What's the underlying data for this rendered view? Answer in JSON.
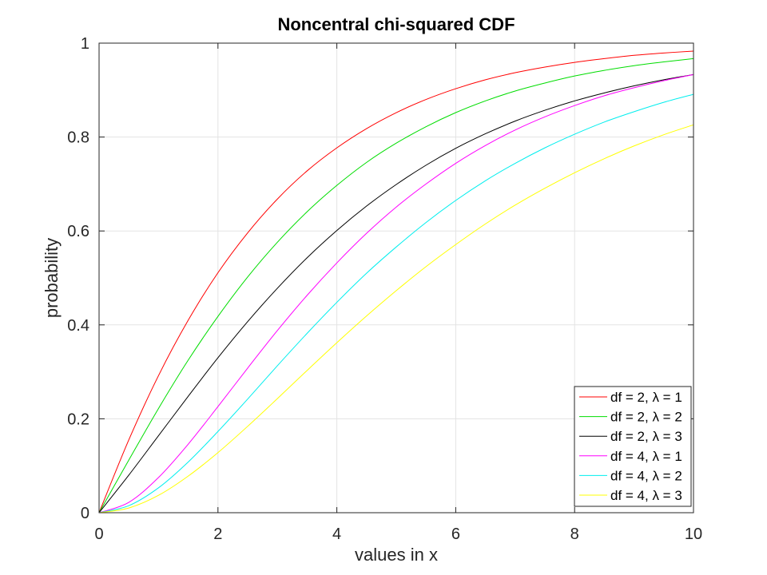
{
  "chart_data": {
    "type": "line",
    "title": "Noncentral chi-squared CDF",
    "xlabel": "values in x",
    "ylabel": "probability",
    "xlim": [
      0,
      10
    ],
    "ylim": [
      0,
      1
    ],
    "grid": true,
    "legend_position": "bottom-right",
    "x_ticks": [
      0,
      2,
      4,
      6,
      8,
      10
    ],
    "x_tick_labels": [
      "0",
      "2",
      "4",
      "6",
      "8",
      "10"
    ],
    "y_ticks": [
      0,
      0.2,
      0.4,
      0.6,
      0.8,
      1
    ],
    "y_tick_labels": [
      "0",
      "0.2",
      "0.4",
      "0.6",
      "0.8",
      "1"
    ],
    "x": [
      0,
      0.5,
      1,
      1.5,
      2,
      2.5,
      3,
      3.5,
      4,
      4.5,
      5,
      5.5,
      6,
      6.5,
      7,
      7.5,
      8,
      8.5,
      9,
      9.5,
      10
    ],
    "series": [
      {
        "name": "df = 2, λ = 1",
        "color": "#ff0000",
        "values": [
          0,
          0.155,
          0.292,
          0.41,
          0.511,
          0.596,
          0.668,
          0.728,
          0.777,
          0.818,
          0.852,
          0.88,
          0.903,
          0.922,
          0.937,
          0.949,
          0.959,
          0.967,
          0.974,
          0.979,
          0.983
        ]
      },
      {
        "name": "df = 2, λ = 2",
        "color": "#00dd00",
        "values": [
          0,
          0.112,
          0.222,
          0.325,
          0.418,
          0.502,
          0.576,
          0.641,
          0.697,
          0.746,
          0.787,
          0.822,
          0.852,
          0.877,
          0.898,
          0.915,
          0.93,
          0.942,
          0.952,
          0.96,
          0.967
        ]
      },
      {
        "name": "df = 2, λ = 3",
        "color": "#000000",
        "values": [
          0,
          0.08,
          0.164,
          0.248,
          0.33,
          0.407,
          0.478,
          0.543,
          0.601,
          0.653,
          0.699,
          0.74,
          0.776,
          0.807,
          0.834,
          0.857,
          0.877,
          0.894,
          0.909,
          0.922,
          0.933
        ]
      },
      {
        "name": "df = 4, λ = 1",
        "color": "#ff00ff",
        "values": [
          0,
          0.022,
          0.075,
          0.146,
          0.226,
          0.308,
          0.388,
          0.463,
          0.532,
          0.595,
          0.651,
          0.7,
          0.744,
          0.782,
          0.815,
          0.843,
          0.867,
          0.888,
          0.905,
          0.92,
          0.933
        ]
      },
      {
        "name": "df = 4, λ = 2",
        "color": "#00eeee",
        "values": [
          0,
          0.015,
          0.053,
          0.108,
          0.173,
          0.242,
          0.313,
          0.382,
          0.448,
          0.51,
          0.566,
          0.618,
          0.665,
          0.707,
          0.744,
          0.777,
          0.806,
          0.832,
          0.854,
          0.874,
          0.891
        ]
      },
      {
        "name": "df = 4, λ = 3",
        "color": "#ffff00",
        "values": [
          0,
          0.01,
          0.037,
          0.078,
          0.128,
          0.184,
          0.243,
          0.303,
          0.362,
          0.419,
          0.473,
          0.524,
          0.571,
          0.615,
          0.655,
          0.691,
          0.724,
          0.754,
          0.781,
          0.805,
          0.826
        ]
      }
    ]
  }
}
